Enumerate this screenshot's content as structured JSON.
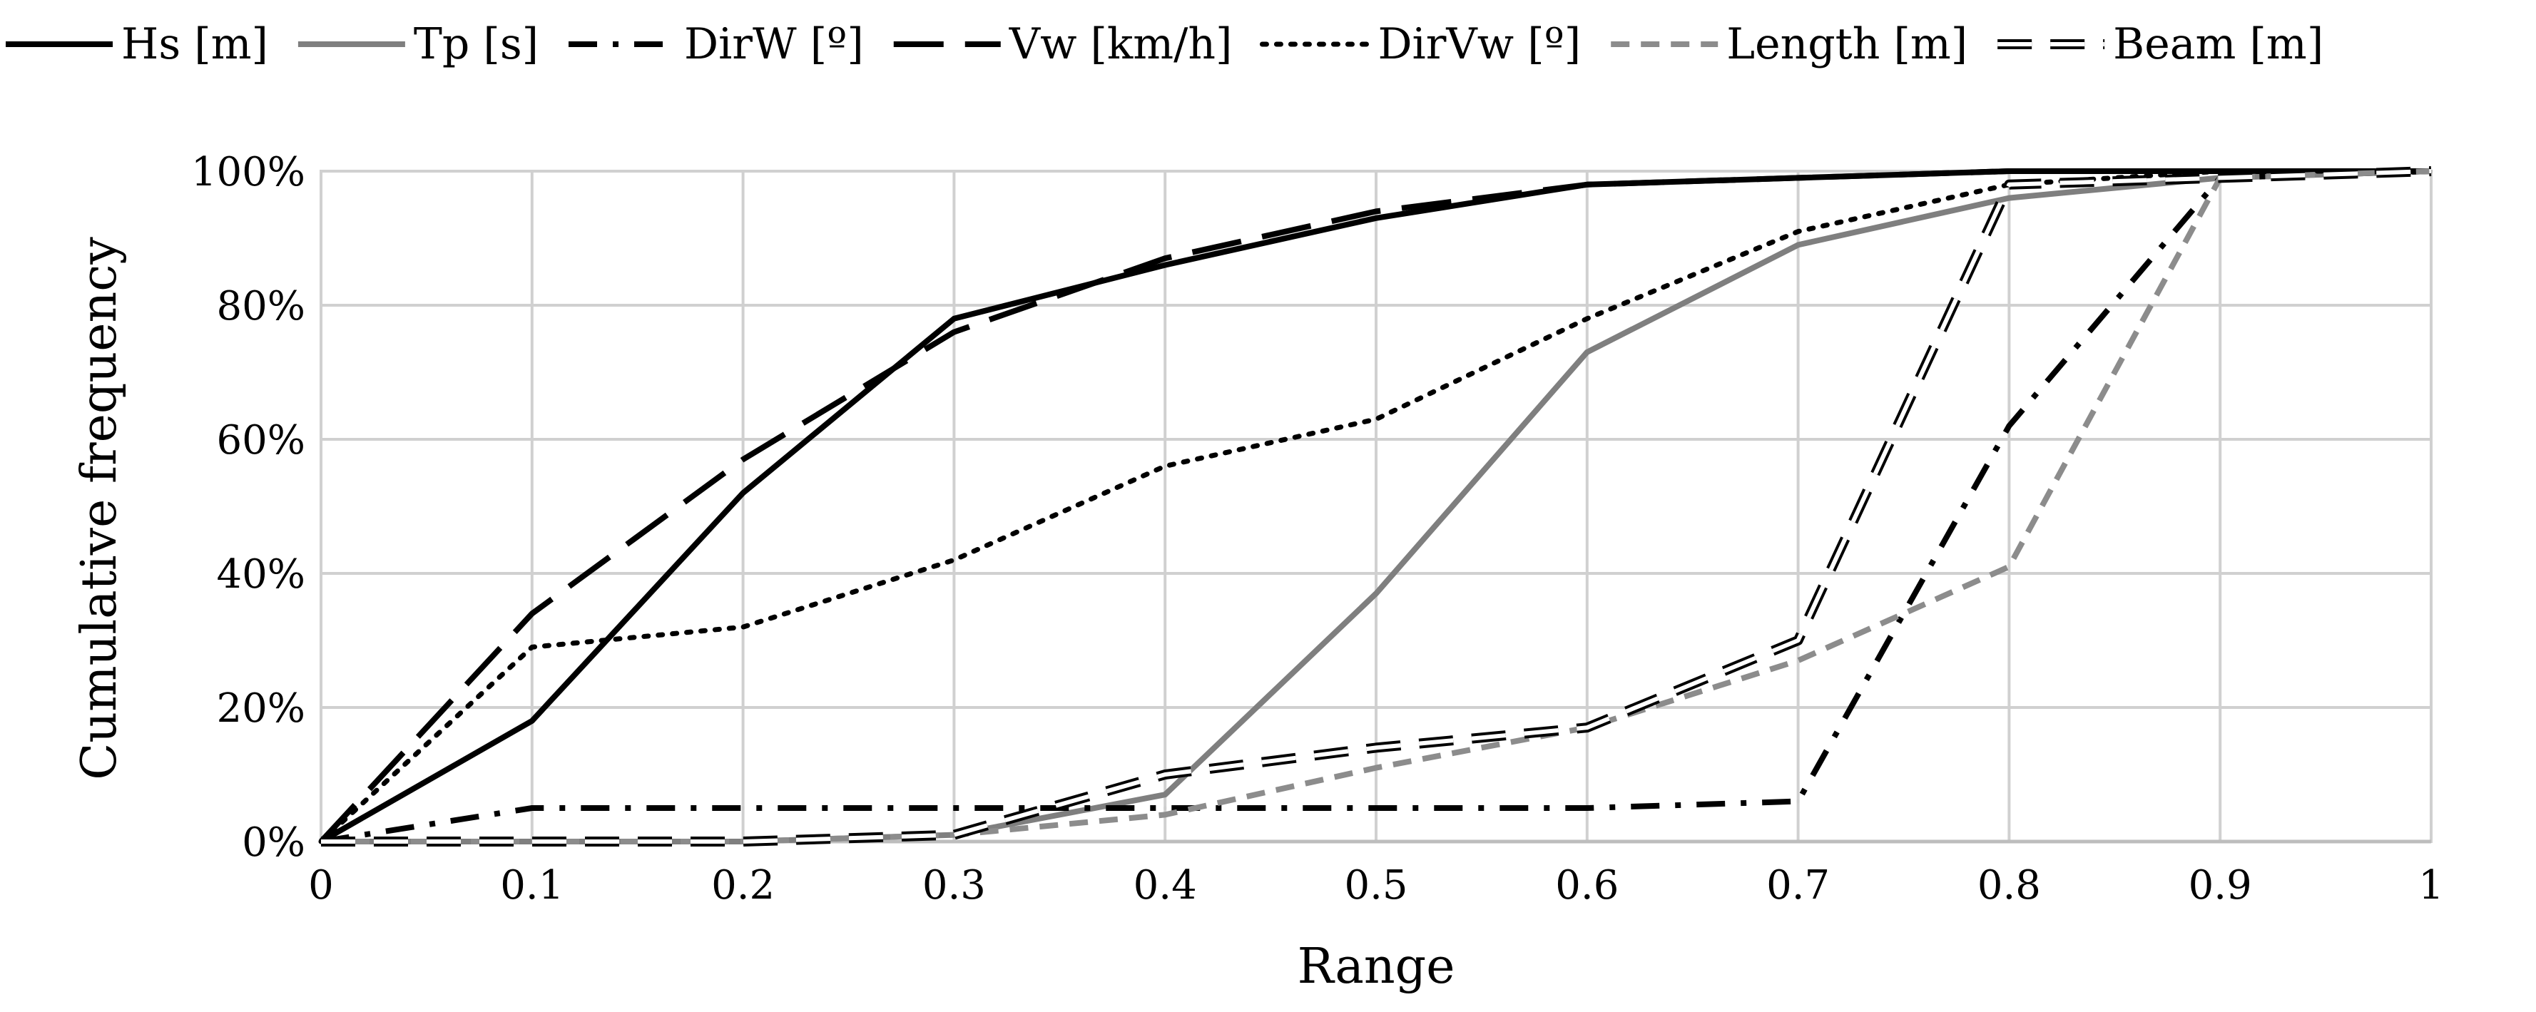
{
  "chart_data": {
    "type": "line",
    "title": "",
    "xlabel": "Range",
    "ylabel": "Cumulative frequency",
    "x": [
      0,
      0.1,
      0.2,
      0.3,
      0.4,
      0.5,
      0.6,
      0.7,
      0.8,
      0.9,
      1
    ],
    "xlim": [
      0,
      1
    ],
    "ylim": [
      0,
      100
    ],
    "x_tick_labels": [
      "0",
      "0.1",
      "0.2",
      "0.3",
      "0.4",
      "0.5",
      "0.6",
      "0.7",
      "0.8",
      "0.9",
      "1"
    ],
    "y_tick_values": [
      0,
      20,
      40,
      60,
      80,
      100
    ],
    "y_tick_labels": [
      "0%",
      "20%",
      "40%",
      "60%",
      "80%",
      "100%"
    ],
    "grid": true,
    "legend_position": "top",
    "series": [
      {
        "name": "Hs [m]",
        "style": "solid-black",
        "color": "#000000",
        "values": [
          0,
          18,
          52,
          78,
          86,
          93,
          98,
          99,
          100,
          100,
          100
        ]
      },
      {
        "name": "Tp [s]",
        "style": "solid-gray",
        "color": "#7f7f7f",
        "values": [
          0,
          0,
          0,
          1,
          7,
          37,
          73,
          89,
          96,
          99,
          100
        ]
      },
      {
        "name": "DirW [º]",
        "style": "dash-dot",
        "color": "#000000",
        "values": [
          0,
          5,
          5,
          5,
          5,
          5,
          5,
          6,
          62,
          99,
          100
        ]
      },
      {
        "name": "Vw [km/h]",
        "style": "long-dash",
        "color": "#000000",
        "values": [
          0,
          34,
          57,
          76,
          87,
          94,
          98,
          99,
          100,
          100,
          100
        ]
      },
      {
        "name": "DirVw [º]",
        "style": "dotted",
        "color": "#000000",
        "values": [
          0,
          29,
          32,
          42,
          56,
          63,
          78,
          91,
          98,
          100,
          100
        ]
      },
      {
        "name": "Length [m]",
        "style": "dashed-gray",
        "color": "#8c8c8c",
        "values": [
          0,
          0,
          0,
          1,
          4,
          11,
          17,
          27,
          41,
          99,
          100
        ]
      },
      {
        "name": "Beam [m]",
        "style": "double-dashed",
        "color": "#000000",
        "values": [
          0,
          0,
          0,
          1,
          10,
          14,
          17,
          30,
          98,
          99,
          100
        ]
      }
    ]
  }
}
